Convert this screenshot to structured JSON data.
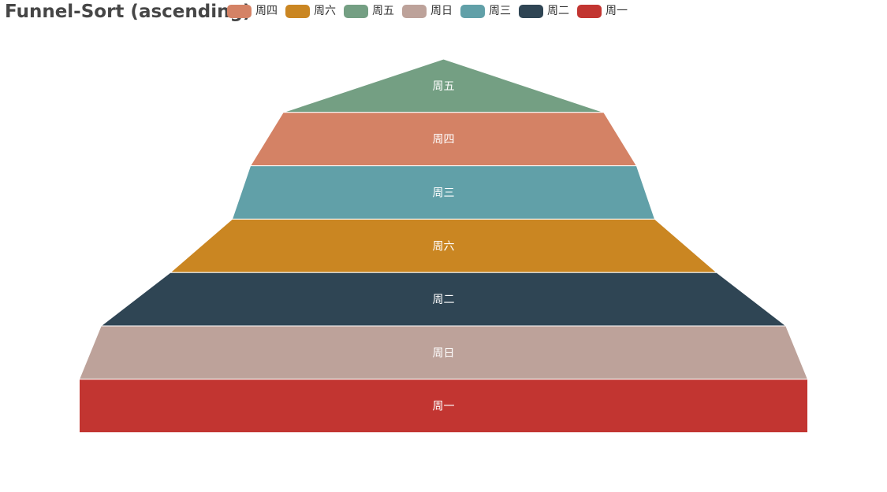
{
  "title": "Funnel-Sort (ascending)",
  "legend": [
    {
      "label": "周四",
      "color": "#d48265"
    },
    {
      "label": "周六",
      "color": "#ca8622"
    },
    {
      "label": "周五",
      "color": "#749f83"
    },
    {
      "label": "周日",
      "color": "#bda29a"
    },
    {
      "label": "周三",
      "color": "#61a0a8"
    },
    {
      "label": "周二",
      "color": "#2f4554"
    },
    {
      "label": "周一",
      "color": "#c23531"
    }
  ],
  "chart_data": {
    "type": "funnel",
    "sort": "ascending",
    "title": "Funnel-Sort (ascending)",
    "max": 100,
    "min": 0,
    "legend_position": "top",
    "categories": [
      "周五",
      "周四",
      "周三",
      "周六",
      "周二",
      "周日",
      "周一"
    ],
    "values": [
      0,
      44,
      53,
      58,
      75,
      94,
      100
    ],
    "colors": [
      "#749f83",
      "#d48265",
      "#61a0a8",
      "#ca8622",
      "#2f4554",
      "#bda29a",
      "#c23531"
    ]
  }
}
